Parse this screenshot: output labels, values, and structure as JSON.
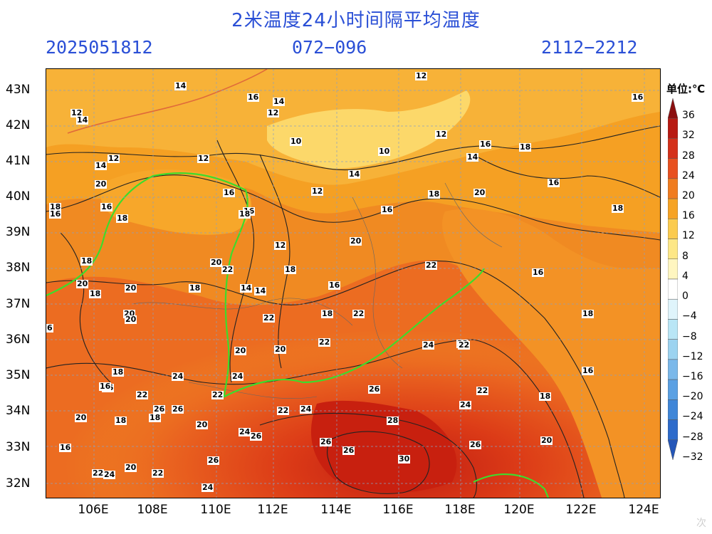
{
  "title": "2米温度24小时间隔平均温度",
  "subtitle_left": "2025051812",
  "subtitle_mid": "072−096",
  "subtitle_right": "2112−2212",
  "unit_label": "单位:℃",
  "lat_labels": [
    "43N",
    "42N",
    "41N",
    "40N",
    "39N",
    "38N",
    "37N",
    "36N",
    "35N",
    "34N",
    "33N",
    "32N"
  ],
  "lon_labels": [
    "106E",
    "108E",
    "110E",
    "112E",
    "114E",
    "116E",
    "118E",
    "120E",
    "122E",
    "124E"
  ],
  "colorbar_ticks": [
    "36",
    "32",
    "28",
    "24",
    "20",
    "16",
    "12",
    "8",
    "4",
    "0",
    "−4",
    "−8",
    "−12",
    "−16",
    "−20",
    "−24",
    "−28",
    "−32"
  ],
  "colorbar_colors": [
    "#8b0f0f",
    "#b81a12",
    "#d4301a",
    "#e8501f",
    "#f07c1f",
    "#f6a324",
    "#fbcb4e",
    "#fde786",
    "#fff6c0",
    "#ffffff",
    "#dff4fb",
    "#b9e6f6",
    "#9cd3f0",
    "#7ab8ea",
    "#5aa0e3",
    "#3f86d8",
    "#2d6bcb",
    "#2456b8"
  ],
  "contour_labels": [
    {
      "t": "12"
    },
    {
      "t": "14"
    },
    {
      "t": "16"
    },
    {
      "t": "14"
    },
    {
      "t": "12"
    },
    {
      "t": "16"
    },
    {
      "t": "12"
    },
    {
      "t": "14"
    },
    {
      "t": "10"
    },
    {
      "t": "10"
    },
    {
      "t": "12"
    },
    {
      "t": "12"
    },
    {
      "t": "14"
    },
    {
      "t": "14"
    },
    {
      "t": "16"
    },
    {
      "t": "18"
    },
    {
      "t": "16"
    },
    {
      "t": "18"
    },
    {
      "t": "16"
    },
    {
      "t": "18"
    },
    {
      "t": "20"
    },
    {
      "t": "16"
    },
    {
      "t": "12"
    },
    {
      "t": "14"
    },
    {
      "t": "18"
    },
    {
      "t": "16"
    },
    {
      "t": "12"
    },
    {
      "t": "16"
    },
    {
      "t": "16"
    },
    {
      "t": "18"
    },
    {
      "t": "18"
    },
    {
      "t": "20"
    },
    {
      "t": "16"
    },
    {
      "t": "14"
    },
    {
      "t": "12"
    },
    {
      "t": "20"
    },
    {
      "t": "18"
    },
    {
      "t": "22"
    },
    {
      "t": "20"
    },
    {
      "t": "18"
    },
    {
      "t": "16"
    },
    {
      "t": "20"
    },
    {
      "t": "18"
    },
    {
      "t": "20"
    },
    {
      "t": "20"
    },
    {
      "t": "22"
    },
    {
      "t": "18"
    },
    {
      "t": "14"
    },
    {
      "t": "22"
    },
    {
      "t": "18"
    },
    {
      "t": "16"
    },
    {
      "t": "18"
    },
    {
      "t": "22"
    },
    {
      "t": "20"
    },
    {
      "t": "20"
    },
    {
      "t": "24"
    },
    {
      "t": "22"
    },
    {
      "t": "22"
    },
    {
      "t": "24"
    },
    {
      "t": "24"
    },
    {
      "t": "22"
    },
    {
      "t": "26"
    },
    {
      "t": "26"
    },
    {
      "t": "22"
    },
    {
      "t": "20"
    },
    {
      "t": "24"
    },
    {
      "t": "16"
    },
    {
      "t": "22"
    },
    {
      "t": "20"
    },
    {
      "t": "18"
    },
    {
      "t": "26"
    },
    {
      "t": "22"
    },
    {
      "t": "24"
    },
    {
      "t": "18"
    },
    {
      "t": "16"
    },
    {
      "t": "22"
    },
    {
      "t": "18"
    },
    {
      "t": "20"
    },
    {
      "t": "24"
    },
    {
      "t": "26"
    },
    {
      "t": "28"
    },
    {
      "t": "26"
    },
    {
      "t": "26"
    },
    {
      "t": "26"
    },
    {
      "t": "20"
    },
    {
      "t": "18"
    },
    {
      "t": "22"
    },
    {
      "t": "24"
    },
    {
      "t": "20"
    },
    {
      "t": "26"
    },
    {
      "t": "30"
    },
    {
      "t": "22"
    },
    {
      "t": "24"
    },
    {
      "t": "16"
    },
    {
      "t": "6"
    }
  ],
  "watermark": "次"
}
